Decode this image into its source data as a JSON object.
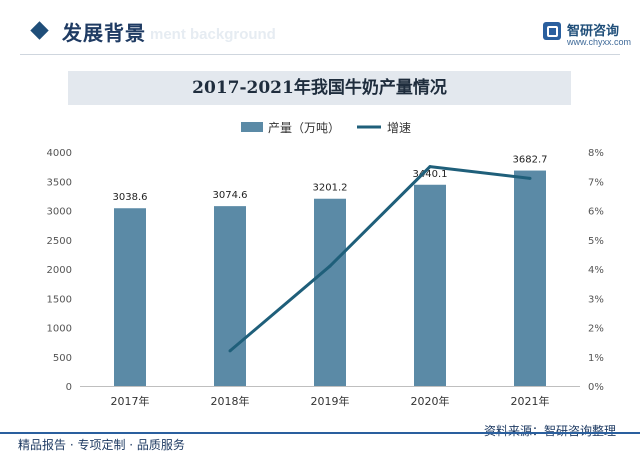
{
  "header": {
    "section_title": "发展背景",
    "section_subtitle": "ment background",
    "brand_name": "智研咨询",
    "brand_url": "www.chyxx.com"
  },
  "footer": {
    "left_text": "精品报告 · 专项定制 · 品质服务",
    "source_text": "资料来源：智研咨询整理"
  },
  "colors": {
    "bar": "#5b8aa6",
    "line": "#1f5f7a",
    "title_bg": "#e3e8ee"
  },
  "chart_data": {
    "type": "bar",
    "title": "2017-2021年我国牛奶产量情况",
    "categories": [
      "2017年",
      "2018年",
      "2019年",
      "2020年",
      "2021年"
    ],
    "series": [
      {
        "name": "产量（万吨）",
        "type": "bar",
        "axis": "left",
        "values": [
          3038.6,
          3074.6,
          3201.2,
          3440.1,
          3682.7
        ],
        "labels": [
          "3038.6",
          "3074.6",
          "3201.2",
          "3440.1",
          "3682.7"
        ]
      },
      {
        "name": "增速",
        "type": "line",
        "axis": "right",
        "values": [
          null,
          1.2,
          4.1,
          7.5,
          7.1
        ]
      }
    ],
    "y_left": {
      "min": 0,
      "max": 4000,
      "ticks": [
        "0",
        "500",
        "1000",
        "1500",
        "2000",
        "2500",
        "3000",
        "3500",
        "4000"
      ]
    },
    "y_right": {
      "min": 0,
      "max": 8,
      "ticks": [
        "0%",
        "1%",
        "2%",
        "3%",
        "4%",
        "5%",
        "6%",
        "7%",
        "8%"
      ]
    },
    "legend_position": "top-center",
    "grid": false
  }
}
